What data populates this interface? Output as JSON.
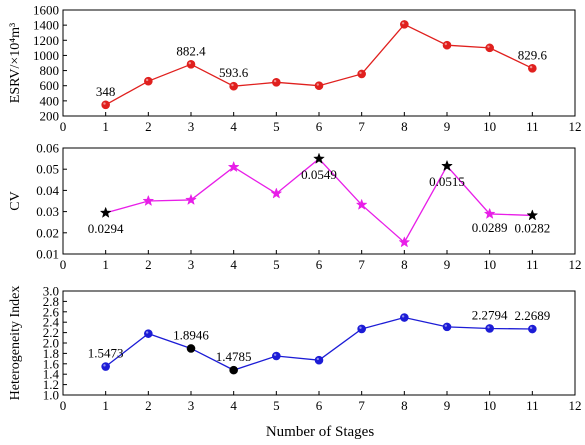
{
  "xlabel": "Number of Stages",
  "chart_data": [
    {
      "type": "line",
      "ylabel": "ESRV/×10⁴m³",
      "xlim": [
        0,
        12
      ],
      "ylim": [
        200,
        1600
      ],
      "xticks": [
        0,
        1,
        2,
        3,
        4,
        5,
        6,
        7,
        8,
        9,
        10,
        11,
        12
      ],
      "yticks": [
        200,
        400,
        600,
        800,
        1000,
        1200,
        1400,
        1600
      ],
      "x": [
        1,
        2,
        3,
        4,
        5,
        6,
        7,
        8,
        9,
        10,
        11
      ],
      "series": [
        {
          "values": [
            348,
            660,
            882.4,
            593.6,
            645,
            600,
            755,
            1410,
            1135,
            1100,
            829.6
          ],
          "color": "#e0201e",
          "marker": "circle"
        }
      ],
      "annotations": [
        {
          "x": 1,
          "text": "348"
        },
        {
          "x": 3,
          "text": "882.4"
        },
        {
          "x": 4,
          "text": "593.6"
        },
        {
          "x": 11,
          "text": "829.6"
        }
      ]
    },
    {
      "type": "line",
      "ylabel": "CV",
      "xlim": [
        0,
        12
      ],
      "ylim": [
        0.01,
        0.06
      ],
      "xticks": [
        0,
        1,
        2,
        3,
        4,
        5,
        6,
        7,
        8,
        9,
        10,
        11,
        12
      ],
      "yticks": [
        0.01,
        0.02,
        0.03,
        0.04,
        0.05,
        0.06
      ],
      "x": [
        1,
        2,
        3,
        4,
        5,
        6,
        7,
        8,
        9,
        10,
        11
      ],
      "series": [
        {
          "values": [
            0.0294,
            0.035,
            0.0355,
            0.051,
            0.0385,
            0.0549,
            0.0332,
            0.0155,
            0.0515,
            0.0289,
            0.0282
          ],
          "color": "#e81ee8",
          "marker": "star",
          "marker_colors": [
            "#000000",
            "#e81ee8",
            "#e81ee8",
            "#e81ee8",
            "#e81ee8",
            "#000000",
            "#e81ee8",
            "#e81ee8",
            "#000000",
            "#e81ee8",
            "#000000"
          ]
        }
      ],
      "annotations": [
        {
          "x": 1,
          "text": "0.0294"
        },
        {
          "x": 6,
          "text": "0.0549"
        },
        {
          "x": 9,
          "text": "0.0515"
        },
        {
          "x": 10,
          "text": "0.0289"
        },
        {
          "x": 11,
          "text": "0.0282"
        }
      ]
    },
    {
      "type": "line",
      "ylabel": "Heterogeneity Index",
      "xlim": [
        0,
        12
      ],
      "ylim": [
        1.0,
        3.0
      ],
      "xticks": [
        0,
        1,
        2,
        3,
        4,
        5,
        6,
        7,
        8,
        9,
        10,
        11,
        12
      ],
      "yticks": [
        "1.0",
        "1.2",
        "1.4",
        "1.6",
        "1.8",
        "2.0",
        "2.2",
        "2.4",
        "2.6",
        "2.8",
        "3.0"
      ],
      "x": [
        1,
        2,
        3,
        4,
        5,
        6,
        7,
        8,
        9,
        10,
        11
      ],
      "series": [
        {
          "values": [
            1.5473,
            2.18,
            1.8946,
            1.4785,
            1.75,
            1.67,
            2.27,
            2.49,
            2.31,
            2.2794,
            2.2689
          ],
          "color": "#1c1cd6",
          "marker": "circle",
          "marker_colors": [
            "#1c1cd6",
            "#1c1cd6",
            "#000000",
            "#000000",
            "#1c1cd6",
            "#1c1cd6",
            "#1c1cd6",
            "#1c1cd6",
            "#1c1cd6",
            "#1c1cd6",
            "#1c1cd6"
          ]
        }
      ],
      "annotations": [
        {
          "x": 1,
          "text": "1.5473"
        },
        {
          "x": 3,
          "text": "1.8946"
        },
        {
          "x": 4,
          "text": "1.4785"
        },
        {
          "x": 10,
          "text": "2.2794"
        },
        {
          "x": 11,
          "text": "2.2689"
        }
      ]
    }
  ]
}
